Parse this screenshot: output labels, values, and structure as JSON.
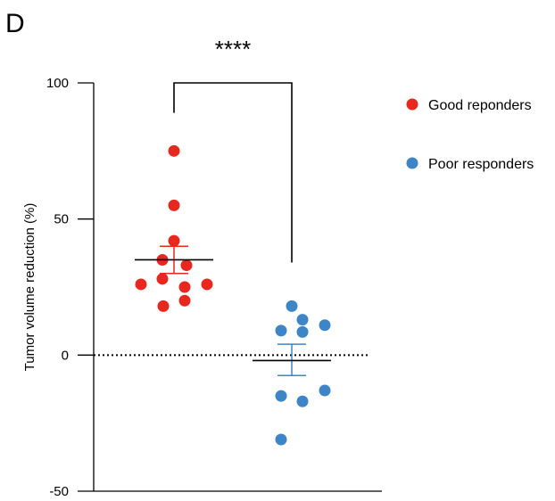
{
  "panel_letter": "D",
  "chart_data": {
    "type": "scatter",
    "ylabel": "Tumor volume reduction (%)",
    "ylim": [
      -50,
      100
    ],
    "yticks": [
      "100",
      "50",
      "0",
      "-50"
    ],
    "reference_line_y": 0,
    "significance": "****",
    "legend": {
      "position": "top-right"
    },
    "series": [
      {
        "name": "Good reponders",
        "color": "#e8281e",
        "error_color": "#e8281e",
        "values": [
          75,
          55,
          42,
          35,
          33,
          28,
          26,
          26,
          25,
          20,
          18
        ],
        "mean": 35,
        "sem_low": 30,
        "sem_high": 40
      },
      {
        "name": "Poor responders",
        "color": "#3d85c6",
        "error_color": "#3d85c6",
        "values": [
          18,
          13,
          11,
          9,
          8.5,
          -13,
          -15,
          -17,
          -31
        ],
        "mean": -2,
        "sem_low": -7.5,
        "sem_high": 4
      }
    ]
  }
}
